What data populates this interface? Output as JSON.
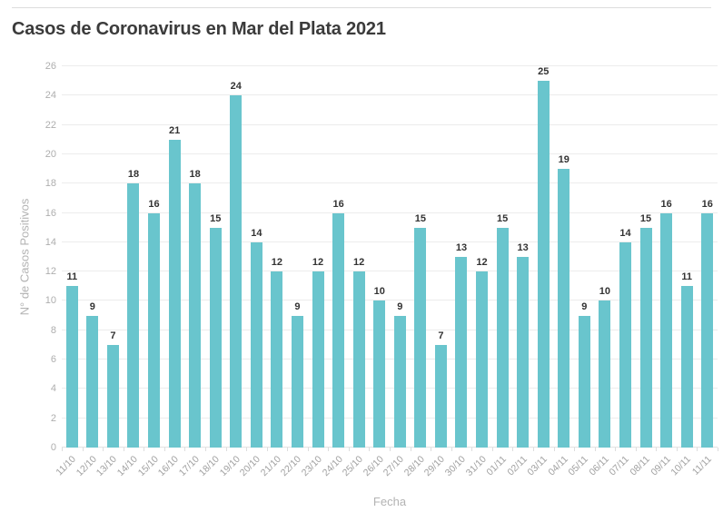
{
  "header": {
    "title": "Casos de Coronavirus en Mar del Plata 2021"
  },
  "chart_data": {
    "type": "bar",
    "title": "Casos de Coronavirus en Mar del Plata 2021",
    "xlabel": "Fecha",
    "ylabel": "N° de Casos Positivos",
    "ylim": [
      0,
      26
    ],
    "ytick_step": 2,
    "grid": true,
    "legend": "none",
    "bar_color": "#69c5cd",
    "value_label_color": "#333333",
    "categories": [
      "11/10",
      "12/10",
      "13/10",
      "14/10",
      "15/10",
      "16/10",
      "17/10",
      "18/10",
      "19/10",
      "20/10",
      "21/10",
      "22/10",
      "23/10",
      "24/10",
      "25/10",
      "26/10",
      "27/10",
      "28/10",
      "29/10",
      "30/10",
      "31/10",
      "01/11",
      "02/11",
      "03/11",
      "04/11",
      "05/11",
      "06/11",
      "07/11",
      "08/11",
      "09/11",
      "10/11",
      "11/11"
    ],
    "values": [
      11,
      9,
      7,
      18,
      16,
      21,
      18,
      15,
      24,
      14,
      12,
      9,
      12,
      16,
      12,
      10,
      9,
      15,
      7,
      13,
      12,
      15,
      13,
      25,
      19,
      9,
      10,
      14,
      15,
      16,
      11,
      16
    ]
  },
  "colors": {
    "title": "#3b3b3b",
    "axis_title": "#b3b3b3",
    "tick_label": "#a0a0a0",
    "gridline": "#ececec",
    "top_rule": "#dcdcdc",
    "background": "#ffffff"
  }
}
